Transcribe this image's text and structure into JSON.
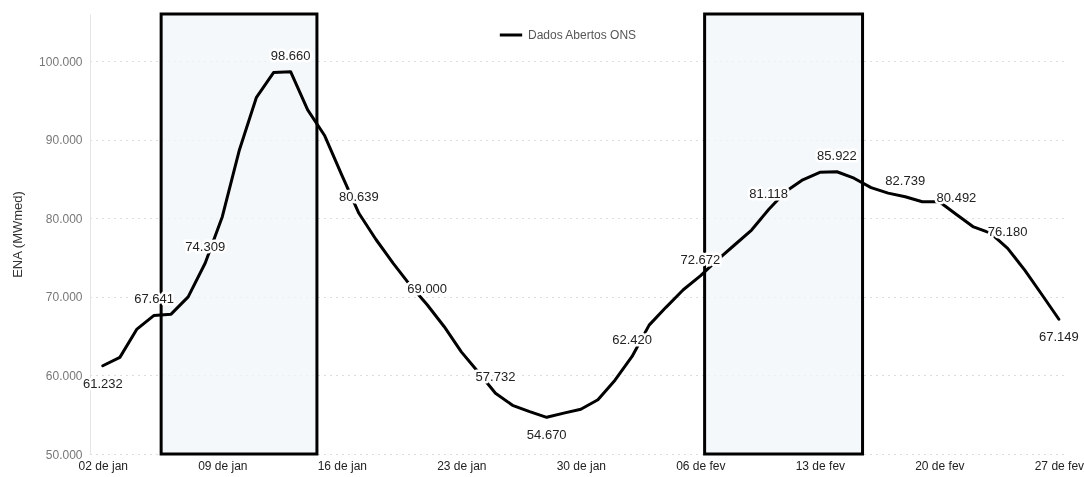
{
  "chart_data": {
    "type": "line",
    "ylabel": "ENA (MWmed)",
    "x": [
      "--01-02",
      "--01-03",
      "--01-04",
      "--01-05",
      "--01-06",
      "--01-07",
      "--01-08",
      "--01-09",
      "--01-10",
      "--01-11",
      "--01-12",
      "--01-13",
      "--01-14",
      "--01-15",
      "--01-16",
      "--01-17",
      "--01-18",
      "--01-19",
      "--01-20",
      "--01-21",
      "--01-22",
      "--01-23",
      "--01-24",
      "--01-25",
      "--01-26",
      "--01-27",
      "--01-28",
      "--01-29",
      "--01-30",
      "--01-31",
      "--02-01",
      "--02-02",
      "--02-03",
      "--02-04",
      "--02-05",
      "--02-06",
      "--02-07",
      "--02-08",
      "--02-09",
      "--02-10",
      "--02-11",
      "--02-12",
      "--02-13",
      "--02-14",
      "--02-15",
      "--02-16",
      "--02-17",
      "--02-18",
      "--02-19",
      "--02-20",
      "--02-21",
      "--02-22",
      "--02-23",
      "--02-24",
      "--02-25",
      "--02-26",
      "--02-27"
    ],
    "series": [
      {
        "name": "Dados Abertos ONS",
        "color": "#000000",
        "values": [
          61232,
          62300,
          65900,
          67641,
          67800,
          70000,
          74309,
          80200,
          88700,
          95400,
          98550,
          98660,
          93800,
          90500,
          85500,
          80639,
          77300,
          74300,
          71500,
          69000,
          66200,
          63000,
          60400,
          57732,
          56200,
          55400,
          54670,
          55200,
          55700,
          56900,
          59400,
          62420,
          66400,
          68700,
          70900,
          72672,
          74700,
          76600,
          78500,
          81118,
          83400,
          84900,
          85850,
          85922,
          85100,
          83900,
          83200,
          82739,
          82100,
          82100,
          80492,
          78900,
          78100,
          76180,
          73400,
          70300,
          67149
        ],
        "value_labels": [
          "61.232",
          null,
          null,
          "67.641",
          null,
          null,
          "74.309",
          null,
          null,
          null,
          null,
          "98.660",
          null,
          null,
          null,
          "80.639",
          null,
          null,
          null,
          "69.000",
          null,
          null,
          null,
          "57.732",
          null,
          null,
          "54.670",
          null,
          null,
          null,
          null,
          "62.420",
          null,
          null,
          null,
          "72.672",
          null,
          null,
          null,
          "81.118",
          null,
          null,
          null,
          "85.922",
          null,
          null,
          null,
          "82.739",
          null,
          null,
          "80.492",
          null,
          null,
          "76.180",
          null,
          null,
          "67.149"
        ]
      }
    ],
    "xlim": [
      "--01-01T06:00",
      "--02-27T10:00"
    ],
    "xticks": [
      {
        "value": "--01-02",
        "label": "02 de jan"
      },
      {
        "value": "--01-09",
        "label": "09 de jan"
      },
      {
        "value": "--01-16",
        "label": "16 de jan"
      },
      {
        "value": "--01-23",
        "label": "23 de jan"
      },
      {
        "value": "--01-30",
        "label": "30 de jan"
      },
      {
        "value": "--02-06",
        "label": "06 de fev"
      },
      {
        "value": "--02-13",
        "label": "13 de fev"
      },
      {
        "value": "--02-20",
        "label": "20 de fev"
      },
      {
        "value": "--02-27",
        "label": "27 de fev"
      }
    ],
    "ylim": [
      50000,
      106000
    ],
    "yticks": [
      {
        "value": 50000,
        "label": "50.000"
      },
      {
        "value": 60000,
        "label": "60.000"
      },
      {
        "value": 70000,
        "label": "70.000"
      },
      {
        "value": 80000,
        "label": "80.000"
      },
      {
        "value": 90000,
        "label": "90.000"
      },
      {
        "value": 100000,
        "label": "100.000"
      }
    ],
    "bands": [
      {
        "axis": "x",
        "from": "--01-05T10:00",
        "to": "--01-14T13:00",
        "color": "#f2f5fa"
      },
      {
        "axis": "x",
        "from": "--02-06T06:00",
        "to": "--02-15T12:00",
        "color": "#f2f5fa"
      }
    ],
    "grid": "y",
    "legend": "top",
    "marker": "none",
    "line_style": "solid"
  }
}
